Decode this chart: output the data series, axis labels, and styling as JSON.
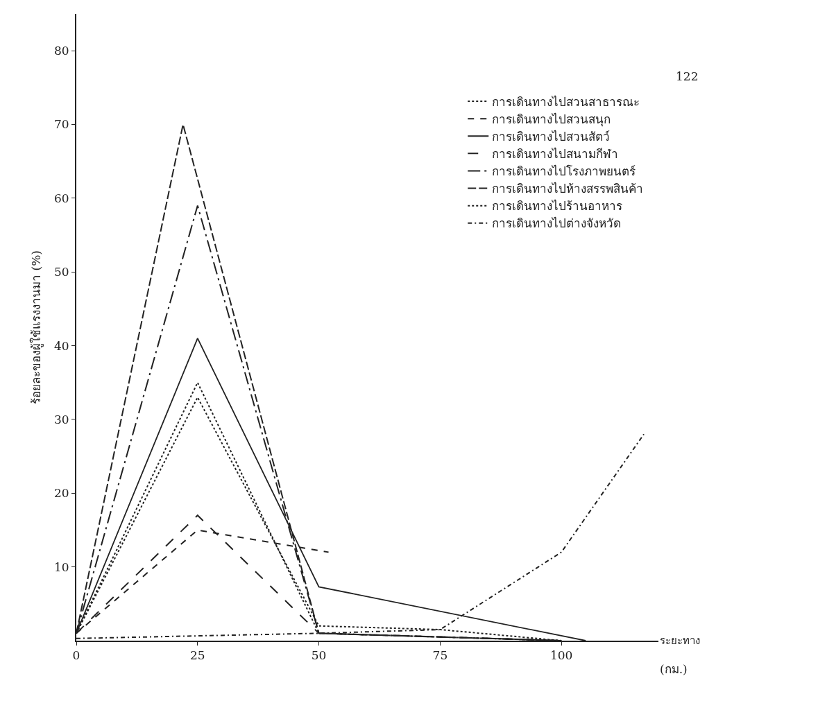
{
  "chart_data": {
    "type": "line",
    "ylabel": "ร้อยละของผู้ใช้แรงงานมา (%)",
    "xlabel": "ระยะทาง",
    "annotations": [
      "(กม.)",
      "122"
    ],
    "xlim": [
      0,
      120
    ],
    "ylim": [
      0,
      85
    ],
    "xticks": [
      0,
      25,
      50,
      75,
      100
    ],
    "yticks": [
      10,
      20,
      30,
      40,
      50,
      60,
      70,
      80
    ],
    "legend": "top right",
    "series": [
      {
        "name": "การเดินทางไปสวนสาธารณะ",
        "color": "#222222",
        "line_style": "dotted",
        "x": [
          0,
          25,
          50,
          75,
          100
        ],
        "values": [
          1,
          33,
          2,
          1.5,
          0
        ]
      },
      {
        "name": "การเดินทางไปสวนสนุก",
        "color": "#222222",
        "line_style": "dashed",
        "x": [
          0,
          25,
          52
        ],
        "values": [
          1,
          15,
          12
        ]
      },
      {
        "name": "การเดินทางไปสวนสัตว์",
        "color": "#222222",
        "line_style": "solid",
        "x": [
          0,
          25,
          50,
          105
        ],
        "values": [
          1,
          41,
          7.3,
          0
        ]
      },
      {
        "name": "การเดินทางไปสนามกีฬา",
        "color": "#222222",
        "line_style": "dashed",
        "x": [
          0,
          25,
          50,
          100
        ],
        "values": [
          1,
          17,
          1,
          0
        ]
      },
      {
        "name": "การเดินทางไปโรงภาพยนตร์",
        "color": "#222222",
        "line_style": "dashed",
        "x": [
          0,
          25,
          50,
          100
        ],
        "values": [
          1,
          59,
          1,
          0
        ]
      },
      {
        "name": "การเดินทางไปห้างสรรพสินค้า",
        "color": "#222222",
        "line_style": "dashed",
        "x": [
          0,
          22,
          50,
          100
        ],
        "values": [
          1,
          70,
          1,
          0
        ]
      },
      {
        "name": "การเดินทางไปร้านอาหาร",
        "color": "#222222",
        "line_style": "dotted",
        "x": [
          0,
          25,
          50,
          100
        ],
        "values": [
          1,
          35,
          1,
          0
        ]
      },
      {
        "name": "การเดินทางไปต่างจังหวัด",
        "color": "#222222",
        "line_style": "dotted",
        "x": [
          0,
          50,
          75,
          100,
          117
        ],
        "values": [
          0.3,
          1,
          1.5,
          12,
          28
        ]
      }
    ]
  }
}
